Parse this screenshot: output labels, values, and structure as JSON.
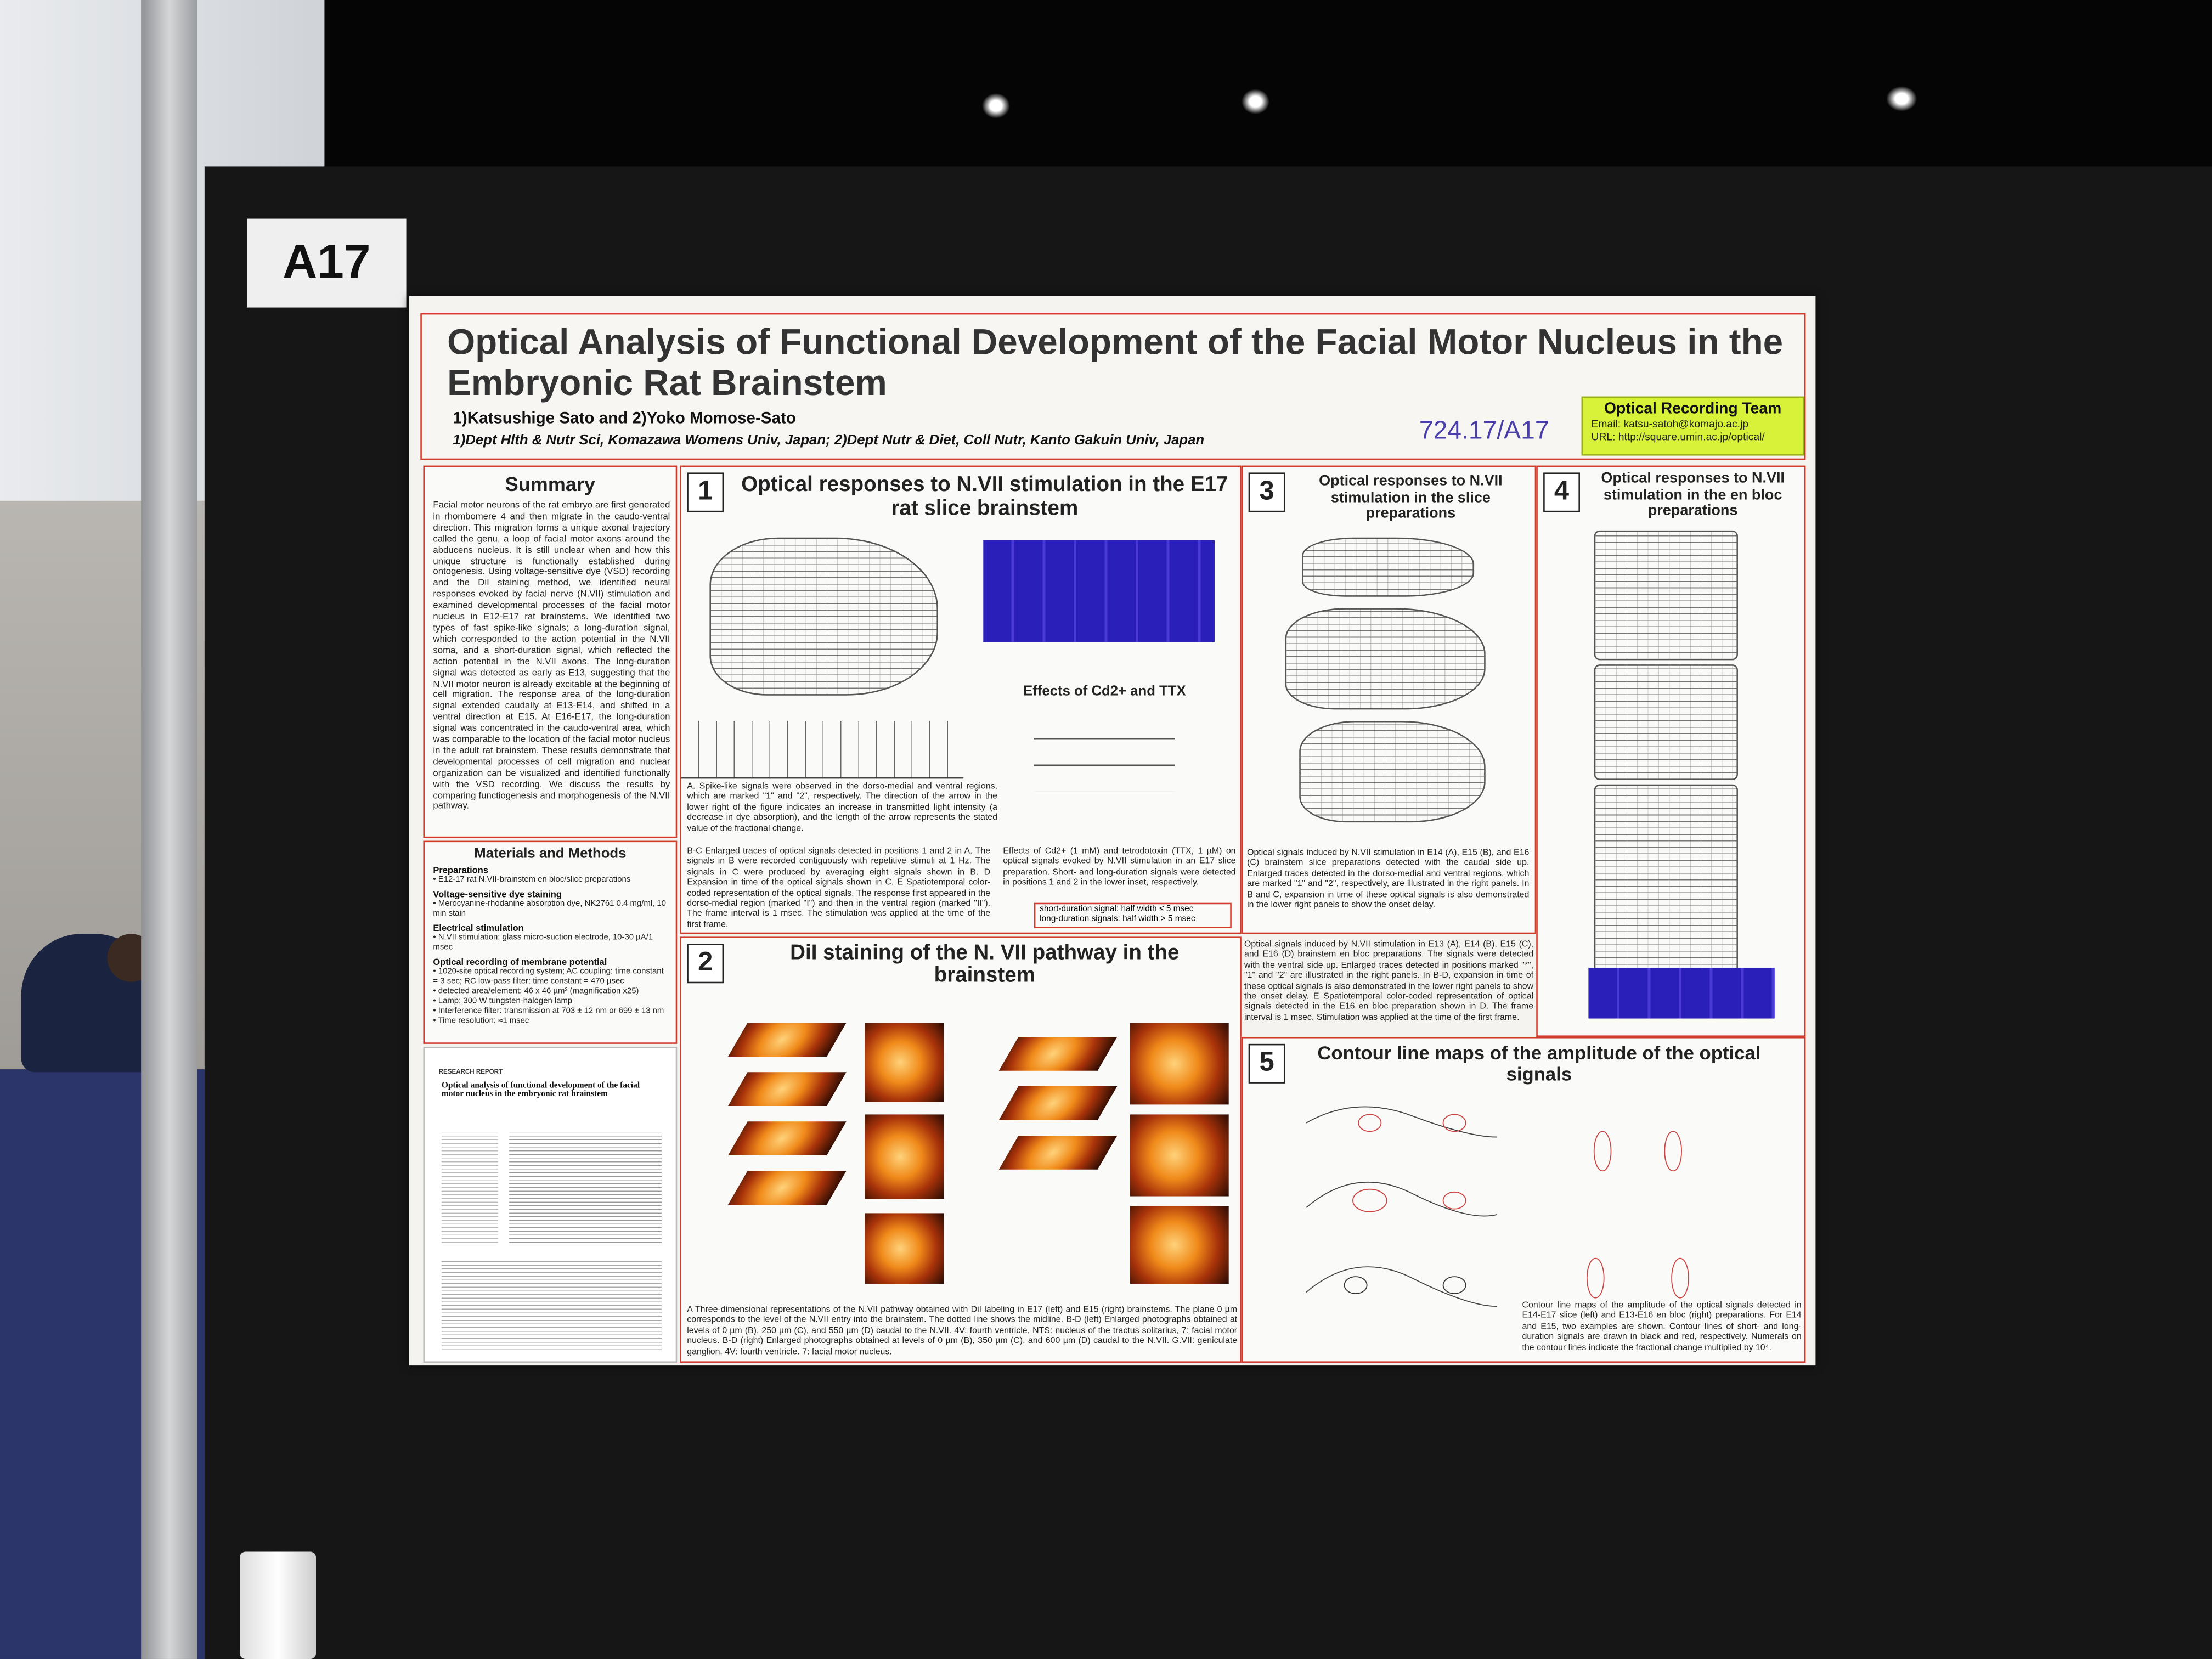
{
  "board_label": "A17",
  "header": {
    "title": "Optical Analysis of Functional Development of the Facial Motor Nucleus in the Embryonic Rat Brainstem",
    "authors": "1)Katsushige Sato and 2)Yoko Momose-Sato",
    "affiliations": "1)Dept Hlth & Nutr Sci, Komazawa Womens Univ, Japan; 2)Dept Nutr & Diet, Coll Nutr, Kanto Gakuin Univ, Japan",
    "abstract_id": "724.17/A17",
    "team": {
      "name": "Optical Recording Team",
      "email": "Email: katsu-satoh@komajo.ac.jp",
      "url": "URL: http://square.umin.ac.jp/optical/"
    }
  },
  "summary": {
    "heading": "Summary",
    "text": "Facial motor neurons of the rat embryo are first generated in rhombomere 4 and then migrate in the caudo-ventral direction. This migration forms a unique axonal trajectory called the genu, a loop of facial motor axons around the abducens nucleus. It is still unclear when and how this unique structure is functionally established during ontogenesis. Using voltage-sensitive dye (VSD) recording and the DiI staining method, we identified neural responses evoked by facial nerve (N.VII) stimulation and examined developmental processes of the facial motor nucleus in E12-E17 rat brainstems. We identified two types of fast spike-like signals; a long-duration signal, which corresponded to the action potential in the N.VII soma, and a short-duration signal, which reflected the action potential in the N.VII axons. The long-duration signal was detected as early as E13, suggesting that the N.VII motor neuron is already excitable at the beginning of cell migration. The response area of the long-duration signal extended caudally at E13-E14, and shifted in a ventral direction at E15. At E16-E17, the long-duration signal was concentrated in the caudo-ventral area, which was comparable to the location of the facial motor nucleus in the adult rat brainstem. These results demonstrate that developmental processes of cell migration and nuclear organization can be visualized and identified functionally with the VSD recording. We discuss the results by comparing functiogenesis and morphogenesis of the N.VII pathway."
  },
  "methods": {
    "heading": "Materials and Methods",
    "sections": [
      {
        "heading": "Preparations",
        "items": [
          "• E12-17 rat N.VII-brainstem en bloc/slice preparations"
        ]
      },
      {
        "heading": "Voltage-sensitive dye staining",
        "items": [
          "• Merocyanine-rhodanine absorption dye, NK2761 0.4 mg/ml, 10 min stain"
        ]
      },
      {
        "heading": "Electrical stimulation",
        "items": [
          "• N.VII stimulation: glass micro-suction electrode, 10-30 µA/1 msec"
        ]
      },
      {
        "heading": "Optical recording of membrane potential",
        "items": [
          "• 1020-site optical recording system; AC coupling: time constant = 3 sec; RC low-pass filter: time constant = 470 µsec",
          "• detected area/element: 46 x 46 µm² (magnification x25)",
          "• Lamp: 300 W tungsten-halogen lamp",
          "• Interference filter: transmission at 703 ± 12 nm or 699 ± 13 nm",
          "• Time resolution: ≈1 msec"
        ]
      }
    ]
  },
  "paper": {
    "type": "RESEARCH REPORT",
    "title": "Optical analysis of functional development of the facial motor nucleus in the embryonic rat brainstem"
  },
  "panels": [
    {
      "number": "1",
      "heading": "Optical responses to N.VII stimulation in the E17 rat slice brainstem",
      "subheading": "Effects of Cd2+ and TTX",
      "caption_a": "A. Spike-like signals were observed in the dorso-medial and ventral regions, which are marked \"1\" and \"2\", respectively. The direction of the arrow in the lower right of the figure indicates an increase in transmitted light intensity (a decrease in dye absorption), and the length of the arrow represents the stated value of the fractional change.",
      "caption_bc": "B-C Enlarged traces of optical signals detected in positions 1 and 2 in A. The signals in B were recorded contiguously with repetitive stimuli at 1 Hz. The signals in C were produced by averaging eight signals shown in B. D Expansion in time of the optical signals shown in C. E Spatiotemporal color-coded representation of the optical signals. The response first appeared in the dorso-medial region (marked \"I\") and then in the ventral region (marked \"II\"). The frame interval is 1 msec. The stimulation was applied at the time of the first frame.",
      "caption_cd": "Effects of Cd2+ (1 mM) and tetrodotoxin (TTX, 1 µM) on optical signals evoked by N.VII stimulation in an E17 slice preparation. Short- and long-duration signals were detected in positions 1 and 2 in the lower inset, respectively.",
      "note": [
        "short-duration signal: half width ≤ 5 msec",
        "long-duration signals: half width > 5 msec"
      ]
    },
    {
      "number": "2",
      "heading": "DiI staining of the N. VII pathway in the brainstem",
      "caption": "A Three-dimensional representations of the N.VII pathway obtained with DiI labeling in E17 (left) and E15 (right) brainstems. The plane 0 µm corresponds to the level of the N.VII entry into the brainstem. The dotted line shows the midline. B-D (left) Enlarged photographs obtained at levels of 0 µm (B), 250 µm (C), and 550 µm (D) caudal to the N.VII. 4V: fourth ventricle, NTS: nucleus of the tractus solitarius, 7: facial motor nucleus. B-D (right) Enlarged photographs obtained at levels of 0 µm (B), 350 µm (C), and 600 µm (D) caudal to the N.VII. G.VII: geniculate ganglion. 4V: fourth ventricle. 7: facial motor nucleus."
    },
    {
      "number": "3",
      "heading": "Optical responses to N.VII stimulation in the slice preparations",
      "caption": "Optical signals induced by N.VII stimulation in E14 (A), E15 (B), and E16 (C) brainstem slice preparations detected with the caudal side up. Enlarged traces detected in the dorso-medial and ventral regions, which are marked \"1\" and \"2\", respectively, are illustrated in the right panels. In B and C, expansion in time of these optical signals is also demonstrated in the lower right panels to show the onset delay."
    },
    {
      "number": "4",
      "heading": "Optical responses to N.VII stimulation in the en bloc preparations",
      "caption": "Optical signals induced by N.VII stimulation in E13 (A), E14 (B), E15 (C), and E16 (D) brainstem en bloc preparations. The signals were detected with the ventral side up. Enlarged traces detected in positions marked \"*\", \"1\" and \"2\" are illustrated in the right panels. In B-D, expansion in time of these optical signals is also demonstrated in the lower right panels to show the onset delay. E Spatiotemporal color-coded representation of optical signals detected in the E16 en bloc preparation shown in D. The frame interval is 1 msec. Stimulation was applied at the time of the first frame."
    },
    {
      "number": "5",
      "heading": "Contour line maps of the amplitude of the optical signals",
      "caption": "Contour line maps of the amplitude of the optical signals detected in E14-E17 slice (left) and E13-E16 en bloc (right) preparations. For E14 and E15, two examples are shown. Contour lines of short- and long-duration signals are drawn in black and red, respectively. Numerals on the contour lines indicate the fractional change multiplied by 10⁴."
    }
  ]
}
